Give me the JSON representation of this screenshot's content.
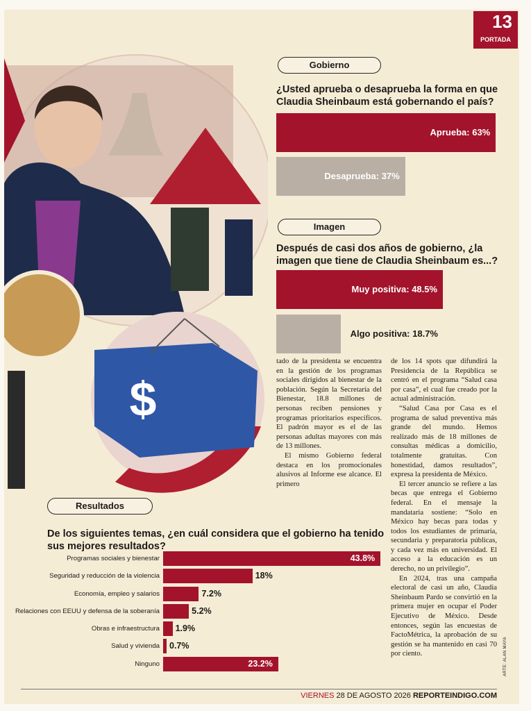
{
  "header": {
    "page_number": "13",
    "section": "PORTADA"
  },
  "chart_data": [
    {
      "type": "bar",
      "orientation": "horizontal",
      "title": "Gobierno",
      "subtitle": "¿Usted aprueba o desaprueba la forma en que Claudia Sheinbaum está gobernando el país?",
      "values": [
        63,
        37
      ],
      "value_labels": [
        "Aprueba: 63%",
        "Desaprueba: 37%"
      ],
      "colors": [
        "#a3132b",
        "#b9afa5"
      ]
    },
    {
      "type": "bar",
      "orientation": "horizontal",
      "title": "Imagen",
      "subtitle": "Después de casi dos años de gobierno, ¿la imagen que tiene de Claudia Sheinbaum es...?",
      "values": [
        48.5,
        18.7
      ],
      "value_labels": [
        "Muy positiva: 48.5%",
        "Algo positiva: 18.7%"
      ],
      "colors": [
        "#a3132b",
        "#b9afa5"
      ]
    },
    {
      "type": "bar",
      "orientation": "horizontal",
      "title": "Resultados",
      "subtitle": "De los siguientes temas, ¿en cuál considera que el gobierno ha tenido sus mejores resultados?",
      "categories": [
        "Programas sociales y bienestar",
        "Seguridad y reducción de la violencia",
        "Economía, empleo y salarios",
        "Relaciones con EEUU y defensa de la soberanía",
        "Obras e infraestructura",
        "Salud y vivienda",
        "Ninguno"
      ],
      "values": [
        43.8,
        18,
        7.2,
        5.2,
        1.9,
        0.7,
        23.2
      ],
      "value_labels": [
        "43.8%",
        "18%",
        "7.2%",
        "5.2%",
        "1.9%",
        "0.7%",
        "23.2%"
      ],
      "color": "#a3132b"
    }
  ],
  "article": {
    "column_1": [
      "tado de la presidenta se encuentra en la gestión de los programas sociales dirigidos al bienestar de la población. Según la Secretaría del Bienestar, 18.8 millones de personas reciben pensiones y programas prioritarios específicos. El padrón mayor es el de las personas adultas mayores con más de 13 millones.",
      "El mismo Gobierno federal destaca en los promocionales alusivos al Informe ese alcance. El primero"
    ],
    "column_2": [
      "de los 14 spots que difundirá la Presidencia de la República se centró en el programa “Salud casa por casa”, el cual fue creado por la actual administración.",
      "“Salud Casa por Casa es el programa de salud preventiva más grande del mundo. Hemos realizado más de 18 millones de consultas médicas a domicilio, totalmente gratuitas. Con honestidad, damos resultados”, expresa la presidenta de México.",
      "El tercer anuncio se refiere a las becas que entrega el Gobierno federal. En el mensaje la mandataria sostiene: “Solo en México hay becas para todas y todos los estudiantes de primaria, secundaria y preparatoria públicas, y cada vez más en universidad. El acceso a la educación es un derecho, no un privilegio”.",
      "En 2024, tras una campaña electoral de casi un año, Claudia Sheinbaum Pardo se convirtió en la primera mujer en ocupar el Poder Ejecutivo de México. Desde entonces, según las encuestas de FactoMétrica, la aprobación de su gestión se ha mantenido en casi 70 por ciento."
    ],
    "credit": "ARTE: ALAN MAYA"
  },
  "footer": {
    "day": "VIERNES",
    "date": "28 DE AGOSTO 2026",
    "site": "REPORTEINDIGO.COM"
  }
}
